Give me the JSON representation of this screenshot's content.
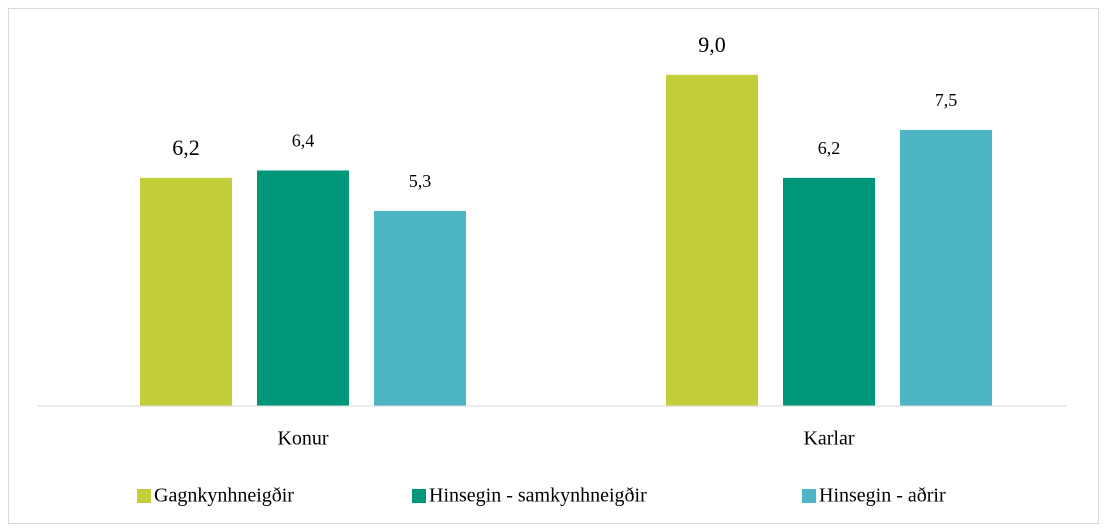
{
  "chart_data": {
    "type": "bar",
    "categories": [
      "Konur",
      "Karlar"
    ],
    "series": [
      {
        "name": "Gagnkynhneigðir",
        "color": "#c3cf3a",
        "values": [
          6.2,
          9.0
        ],
        "value_labels": [
          "6,2",
          "9,0"
        ]
      },
      {
        "name": "Hinsegin - samkynhneigðir",
        "color": "#009679",
        "values": [
          6.4,
          6.2
        ],
        "value_labels": [
          "6,4",
          "6,2"
        ]
      },
      {
        "name": "Hinsegin - aðrir",
        "color": "#4db5c4",
        "values": [
          5.3,
          7.5
        ],
        "value_labels": [
          "5,3",
          "7,5"
        ]
      }
    ],
    "ylim": [
      0,
      10
    ],
    "legend": "bottom"
  }
}
